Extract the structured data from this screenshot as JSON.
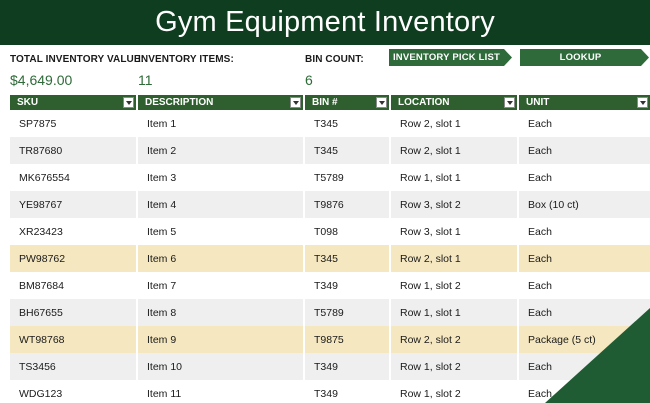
{
  "header": {
    "title": "Gym Equipment Inventory"
  },
  "summary": {
    "total_label": "TOTAL INVENTORY VALUE:",
    "total_value": "$4,649.00",
    "items_label": "INVENTORY ITEMS:",
    "items_value": "11",
    "bins_label": "BIN COUNT:",
    "bins_value": "6"
  },
  "buttons": {
    "pick_list": "INVENTORY PICK LIST",
    "lookup": "LOOKUP"
  },
  "table": {
    "columns": [
      "SKU",
      "DESCRIPTION",
      "BIN #",
      "LOCATION",
      "UNIT"
    ],
    "rows": [
      [
        "SP7875",
        "Item 1",
        "T345",
        "Row 2, slot 1",
        "Each"
      ],
      [
        "TR87680",
        "Item 2",
        "T345",
        "Row 2, slot 1",
        "Each"
      ],
      [
        "MK676554",
        "Item 3",
        "T5789",
        "Row 1, slot 1",
        "Each"
      ],
      [
        "YE98767",
        "Item 4",
        "T9876",
        "Row 3, slot 2",
        "Box (10 ct)"
      ],
      [
        "XR23423",
        "Item 5",
        "T098",
        "Row 3, slot 1",
        "Each"
      ],
      [
        "PW98762",
        "Item 6",
        "T345",
        "Row 2, slot 1",
        "Each"
      ],
      [
        "BM87684",
        "Item 7",
        "T349",
        "Row 1, slot 2",
        "Each"
      ],
      [
        "BH67655",
        "Item 8",
        "T5789",
        "Row 1, slot 1",
        "Each"
      ],
      [
        "WT98768",
        "Item 9",
        "T9875",
        "Row 2, slot 2",
        "Package (5 ct)"
      ],
      [
        "TS3456",
        "Item 10",
        "T349",
        "Row 1, slot 2",
        "Each"
      ],
      [
        "WDG123",
        "Item 11",
        "T349",
        "Row 1, slot 2",
        "Each"
      ]
    ]
  },
  "colors": {
    "title_bg": "#0f3d1f",
    "header_bg": "#2f5f2e",
    "button_bg": "#2f6b3a",
    "accent_value": "#2e6b38",
    "row_alt": "#efefef",
    "row_highlight": "#f5e7bf"
  },
  "icons": {
    "filter": "filter-dropdown-icon",
    "corner": "decorative-corner"
  }
}
